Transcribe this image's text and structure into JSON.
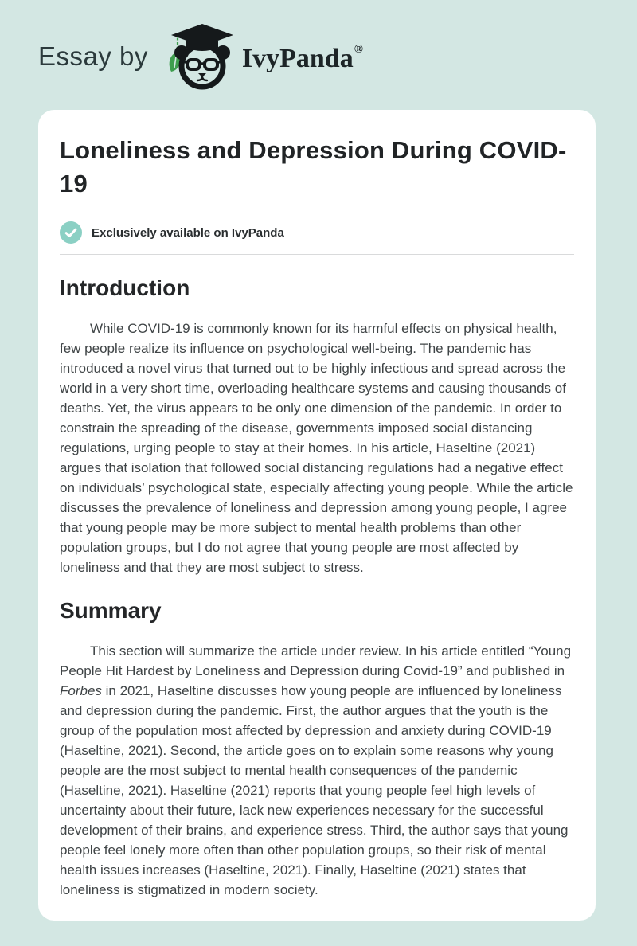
{
  "header": {
    "prefix": "Essay by",
    "brand": "IvyPanda",
    "registered_mark": "®",
    "logo_icon": "panda-graduate-logo"
  },
  "document": {
    "title": "Loneliness and Depression During COVID-19",
    "availability_badge": {
      "icon": "check-icon",
      "label": "Exclusively available on IvyPanda"
    },
    "sections": [
      {
        "heading": "Introduction",
        "paragraphs": [
          [
            {
              "t": "While COVID-19 is commonly known for its harmful effects on physical health, few people realize its influence on psychological well-being. The pandemic has introduced a novel virus that turned out to be highly infectious and spread across the world in a very short time, overloading healthcare systems and causing thousands of deaths. Yet, the virus appears to be only one dimension of the pandemic. In order to constrain the spreading of the disease, governments imposed social distancing regulations, urging people to stay at their homes. In his article, Haseltine (2021) argues that isolation that followed social distancing regulations had a negative effect on individuals’ psychological state, especially affecting young people. While the article discusses the prevalence of loneliness and depression among young people, I agree that young people may be more subject to mental health problems than other population groups, but I do not agree that young people are most affected by loneliness and that they are most subject to stress."
            }
          ]
        ]
      },
      {
        "heading": "Summary",
        "paragraphs": [
          [
            {
              "t": "This section will summarize the article under review. In his article entitled “Young People Hit Hardest by Loneliness and Depression during Covid-19” and published in "
            },
            {
              "t": "Forbes",
              "i": true
            },
            {
              "t": " in 2021, Haseltine discusses how young people are influenced by loneliness and depression during the pandemic. First, the author argues that the youth is the group of the population most affected by depression and anxiety during COVID-19 (Haseltine, 2021). Second, the article goes on to explain some reasons why young people are the most subject to mental health consequences of the pandemic (Haseltine, 2021). Haseltine (2021) reports that young people feel high levels of uncertainty about their future, lack new experiences necessary for the successful development of their brains, and experience stress. Third, the author says that young people feel lonely more often than other population groups, so their risk of mental health issues increases (Haseltine, 2021). Finally, Haseltine (2021) states that loneliness is stigmatized in modern society."
            }
          ]
        ]
      }
    ]
  },
  "colors": {
    "page_background": "#d3e7e3",
    "card_background": "#ffffff",
    "header_text": "#2b3a3c",
    "brand_text": "#1d2527",
    "title_text": "#212426",
    "heading_text": "#242628",
    "body_text": "#3f4446",
    "badge_circle": "#8bd0c4",
    "badge_check": "#ffffff",
    "badge_label_text": "#2a2e30",
    "divider": "#d9dadb",
    "logo_ink": "#15191b",
    "logo_leaf_green": "#3e9e4e"
  }
}
